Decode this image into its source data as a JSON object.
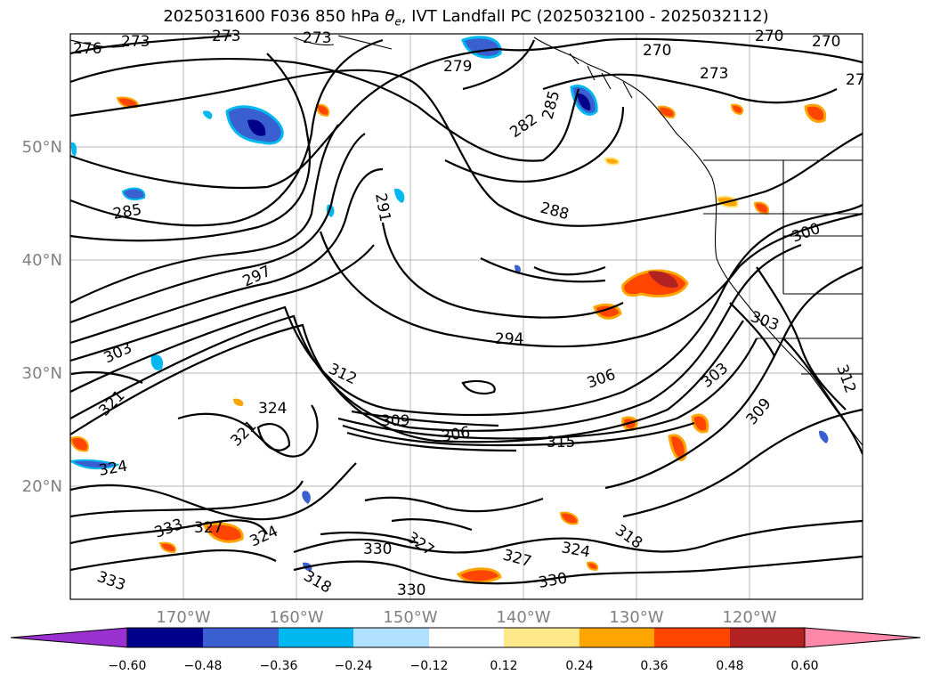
{
  "title": {
    "prefix": "2025031600 F036 850 hPa ",
    "theta_symbol": "θ",
    "theta_sub": "e",
    "suffix": ", IVT Landfall PC (2025032100 - 2025032112)"
  },
  "lat_labels": [
    "50°N",
    "40°N",
    "30°N",
    "20°N"
  ],
  "lon_labels": [
    "170°W",
    "160°W",
    "150°W",
    "140°W",
    "130°W",
    "120°W"
  ],
  "contour_labels": [
    "276",
    "273",
    "273",
    "273",
    "279",
    "282",
    "285",
    "270",
    "270",
    "270",
    "273",
    "27",
    "285",
    "291",
    "288",
    "297",
    "300",
    "294",
    "303",
    "303",
    "312",
    "306",
    "303",
    "321",
    "324",
    "309",
    "306",
    "315",
    "309",
    "321",
    "324",
    "333",
    "327",
    "324",
    "330",
    "327",
    "324",
    "318",
    "327",
    "330",
    "330",
    "333",
    "318",
    "312"
  ],
  "colorbar": {
    "ticks": [
      "−0.60",
      "−0.48",
      "−0.36",
      "−0.24",
      "−0.12",
      "0.12",
      "0.24",
      "0.36",
      "0.48",
      "0.60"
    ],
    "colors": [
      "#9b30d0",
      "#00008b",
      "#3a5fd1",
      "#00b7f0",
      "#b0e0ff",
      "#ffffff",
      "#ffe88a",
      "#ffa500",
      "#ff4500",
      "#b22222",
      "#ff88aa"
    ]
  },
  "field_colors": {
    "neg_dark": "#00008b",
    "neg_mid": "#3a5fd1",
    "neg_light": "#00b7f0",
    "neg_pale": "#b0e0ff",
    "pos_pale": "#ffe88a",
    "pos_mid": "#ffa500",
    "pos_high": "#ff4500",
    "pos_dark": "#b22222"
  }
}
